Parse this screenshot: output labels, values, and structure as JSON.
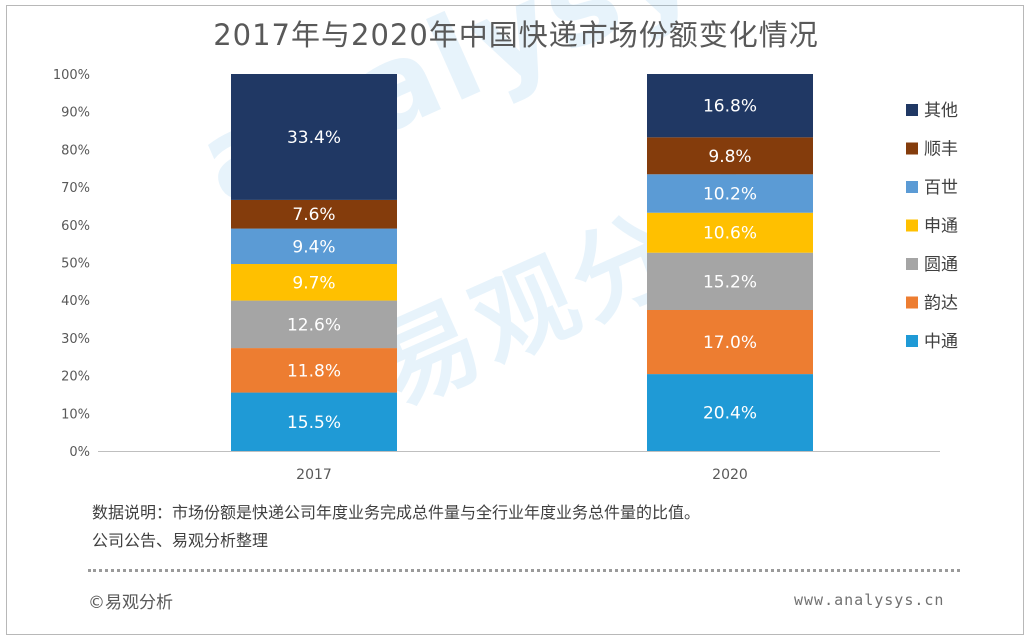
{
  "header": {
    "title": "2017年与2020年中国快递市场份额变化情况"
  },
  "chart_data": {
    "type": "bar",
    "stacked": true,
    "title": "2017年与2020年中国快递市场份额变化情况",
    "categories": [
      "2017",
      "2020"
    ],
    "ylim": [
      0,
      100
    ],
    "y_ticks": [
      "0%",
      "10%",
      "20%",
      "30%",
      "40%",
      "50%",
      "60%",
      "70%",
      "80%",
      "90%",
      "100%"
    ],
    "grid": false,
    "legend_position": "right",
    "series": [
      {
        "name": "中通",
        "values": [
          15.5,
          20.4
        ],
        "labels": [
          "15.5%",
          "20.4%"
        ],
        "color": "#1f9ad6"
      },
      {
        "name": "韵达",
        "values": [
          11.8,
          17.0
        ],
        "labels": [
          "11.8%",
          "17.0%"
        ],
        "color": "#ed7d31"
      },
      {
        "name": "圆通",
        "values": [
          12.6,
          15.2
        ],
        "labels": [
          "12.6%",
          "15.2%"
        ],
        "color": "#a5a5a5"
      },
      {
        "name": "申通",
        "values": [
          9.7,
          10.6
        ],
        "labels": [
          "9.7%",
          "10.6%"
        ],
        "color": "#ffc000"
      },
      {
        "name": "百世",
        "values": [
          9.4,
          10.2
        ],
        "labels": [
          "9.4%",
          "10.2%"
        ],
        "color": "#5b9bd5"
      },
      {
        "name": "顺丰",
        "values": [
          7.6,
          9.8
        ],
        "labels": [
          "7.6%",
          "9.8%"
        ],
        "color": "#843c0c"
      },
      {
        "name": "其他",
        "values": [
          33.4,
          16.8
        ],
        "labels": [
          "33.4%",
          "16.8%"
        ],
        "color": "#203864"
      }
    ]
  },
  "notes": {
    "line1": "数据说明：市场份额是快递公司年度业务完成总件量与全行业年度业务总件量的比值。",
    "line2": "公司公告、易观分析整理"
  },
  "footer": {
    "copyright": "©易观分析",
    "site": "www.analysys.cn"
  },
  "watermark": {
    "text": "analysys",
    "cn": "易观分析"
  }
}
